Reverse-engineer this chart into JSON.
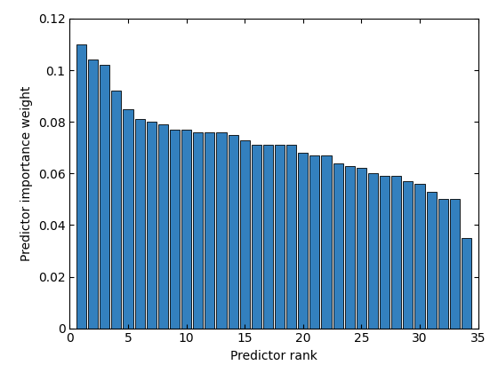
{
  "values": [
    0.11,
    0.104,
    0.102,
    0.092,
    0.085,
    0.081,
    0.08,
    0.079,
    0.077,
    0.077,
    0.076,
    0.076,
    0.076,
    0.075,
    0.073,
    0.071,
    0.071,
    0.071,
    0.071,
    0.068,
    0.067,
    0.067,
    0.064,
    0.063,
    0.062,
    0.06,
    0.059,
    0.059,
    0.057,
    0.056,
    0.053,
    0.05,
    0.05,
    0.035
  ],
  "bar_color": "#3380BE",
  "bar_edge_color": "#000000",
  "xlabel": "Predictor rank",
  "ylabel": "Predictor importance weight",
  "xlim": [
    0,
    35
  ],
  "ylim": [
    0,
    0.12
  ],
  "xticks": [
    0,
    5,
    10,
    15,
    20,
    25,
    30,
    35
  ],
  "yticks": [
    0,
    0.02,
    0.04,
    0.06,
    0.08,
    0.1,
    0.12
  ],
  "background_color": "#ffffff",
  "figsize": [
    5.6,
    4.2
  ],
  "dpi": 100
}
